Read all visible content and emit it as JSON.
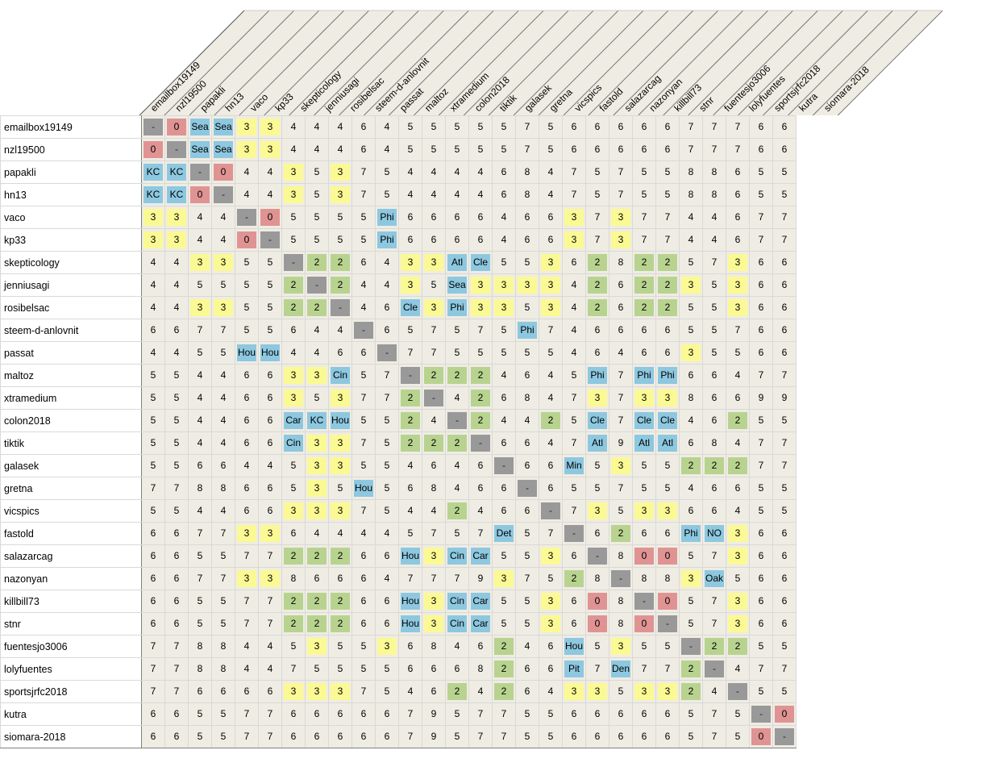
{
  "names": [
    "emailbox19149",
    "nzl19500",
    "papakli",
    "hn13",
    "vaco",
    "kp33",
    "skepticology",
    "jenniusagi",
    "rosibelsac",
    "steem-d-anlovnit",
    "passat",
    "maltoz",
    "xtramedium",
    "colon2018",
    "tiktik",
    "galasek",
    "gretna",
    "vicspics",
    "fastold",
    "salazarcag",
    "nazonyan",
    "killbill73",
    "stnr",
    "fuentesjo3006",
    "lolyfuentes",
    "sportsjrfc2018",
    "kutra",
    "siomara-2018"
  ],
  "matrix": [
    [
      "-",
      "0",
      "Sea",
      "Sea",
      "3",
      "3",
      "4",
      "4",
      "4",
      "6",
      "4",
      "5",
      "5",
      "5",
      "5",
      "5",
      "7",
      "5",
      "6",
      "6",
      "6",
      "6",
      "6",
      "7",
      "7",
      "7",
      "6",
      "6"
    ],
    [
      "0",
      "-",
      "Sea",
      "Sea",
      "3",
      "3",
      "4",
      "4",
      "4",
      "6",
      "4",
      "5",
      "5",
      "5",
      "5",
      "5",
      "7",
      "5",
      "6",
      "6",
      "6",
      "6",
      "6",
      "7",
      "7",
      "7",
      "6",
      "6"
    ],
    [
      "KC",
      "KC",
      "-",
      "0",
      "4",
      "4",
      "3",
      "5",
      "3",
      "7",
      "5",
      "4",
      "4",
      "4",
      "4",
      "6",
      "8",
      "4",
      "7",
      "5",
      "7",
      "5",
      "5",
      "8",
      "8",
      "6",
      "5",
      "5"
    ],
    [
      "KC",
      "KC",
      "0",
      "-",
      "4",
      "4",
      "3",
      "5",
      "3",
      "7",
      "5",
      "4",
      "4",
      "4",
      "4",
      "6",
      "8",
      "4",
      "7",
      "5",
      "7",
      "5",
      "5",
      "8",
      "8",
      "6",
      "5",
      "5"
    ],
    [
      "3",
      "3",
      "4",
      "4",
      "-",
      "0",
      "5",
      "5",
      "5",
      "5",
      "Phi",
      "6",
      "6",
      "6",
      "6",
      "4",
      "6",
      "6",
      "3",
      "7",
      "3",
      "7",
      "7",
      "4",
      "4",
      "6",
      "7",
      "7"
    ],
    [
      "3",
      "3",
      "4",
      "4",
      "0",
      "-",
      "5",
      "5",
      "5",
      "5",
      "Phi",
      "6",
      "6",
      "6",
      "6",
      "4",
      "6",
      "6",
      "3",
      "7",
      "3",
      "7",
      "7",
      "4",
      "4",
      "6",
      "7",
      "7"
    ],
    [
      "4",
      "4",
      "3",
      "3",
      "5",
      "5",
      "-",
      "2",
      "2",
      "6",
      "4",
      "3",
      "3",
      "Atl",
      "Cle",
      "5",
      "5",
      "3",
      "6",
      "2",
      "8",
      "2",
      "2",
      "5",
      "7",
      "3",
      "6",
      "6"
    ],
    [
      "4",
      "4",
      "5",
      "5",
      "5",
      "5",
      "2",
      "-",
      "2",
      "4",
      "4",
      "3",
      "5",
      "Sea",
      "3",
      "3",
      "3",
      "3",
      "4",
      "2",
      "6",
      "2",
      "2",
      "3",
      "5",
      "3",
      "6",
      "6"
    ],
    [
      "4",
      "4",
      "3",
      "3",
      "5",
      "5",
      "2",
      "2",
      "-",
      "4",
      "6",
      "Cle",
      "3",
      "Phi",
      "3",
      "3",
      "5",
      "3",
      "4",
      "2",
      "6",
      "2",
      "2",
      "5",
      "5",
      "3",
      "6",
      "6"
    ],
    [
      "6",
      "6",
      "7",
      "7",
      "5",
      "5",
      "6",
      "4",
      "4",
      "-",
      "6",
      "5",
      "7",
      "5",
      "7",
      "5",
      "Phi",
      "7",
      "4",
      "6",
      "6",
      "6",
      "6",
      "5",
      "5",
      "7",
      "6",
      "6"
    ],
    [
      "4",
      "4",
      "5",
      "5",
      "Hou",
      "Hou",
      "4",
      "4",
      "6",
      "6",
      "-",
      "7",
      "7",
      "5",
      "5",
      "5",
      "5",
      "5",
      "4",
      "6",
      "4",
      "6",
      "6",
      "3",
      "5",
      "5",
      "6",
      "6"
    ],
    [
      "5",
      "5",
      "4",
      "4",
      "6",
      "6",
      "3",
      "3",
      "Cin",
      "5",
      "7",
      "-",
      "2",
      "2",
      "2",
      "4",
      "6",
      "4",
      "5",
      "Phi",
      "7",
      "Phi",
      "Phi",
      "6",
      "6",
      "4",
      "7",
      "7"
    ],
    [
      "5",
      "5",
      "4",
      "4",
      "6",
      "6",
      "3",
      "5",
      "3",
      "7",
      "7",
      "2",
      "-",
      "4",
      "2",
      "6",
      "8",
      "4",
      "7",
      "3",
      "7",
      "3",
      "3",
      "8",
      "6",
      "6",
      "9",
      "9"
    ],
    [
      "5",
      "5",
      "4",
      "4",
      "6",
      "6",
      "Car",
      "KC",
      "Hou",
      "5",
      "5",
      "2",
      "4",
      "-",
      "2",
      "4",
      "4",
      "2",
      "5",
      "Cle",
      "7",
      "Cle",
      "Cle",
      "4",
      "6",
      "2",
      "5",
      "5"
    ],
    [
      "5",
      "5",
      "4",
      "4",
      "6",
      "6",
      "Cin",
      "3",
      "3",
      "7",
      "5",
      "2",
      "2",
      "2",
      "-",
      "6",
      "6",
      "4",
      "7",
      "Atl",
      "9",
      "Atl",
      "Atl",
      "6",
      "8",
      "4",
      "7",
      "7"
    ],
    [
      "5",
      "5",
      "6",
      "6",
      "4",
      "4",
      "5",
      "3",
      "3",
      "5",
      "5",
      "4",
      "6",
      "4",
      "6",
      "-",
      "6",
      "6",
      "Min",
      "5",
      "3",
      "5",
      "5",
      "2",
      "2",
      "2",
      "7",
      "7"
    ],
    [
      "7",
      "7",
      "8",
      "8",
      "6",
      "6",
      "5",
      "3",
      "5",
      "Hou",
      "5",
      "6",
      "8",
      "4",
      "6",
      "6",
      "-",
      "6",
      "5",
      "5",
      "7",
      "5",
      "5",
      "4",
      "6",
      "6",
      "5",
      "5"
    ],
    [
      "5",
      "5",
      "4",
      "4",
      "6",
      "6",
      "3",
      "3",
      "3",
      "7",
      "5",
      "4",
      "4",
      "2",
      "4",
      "6",
      "6",
      "-",
      "7",
      "3",
      "5",
      "3",
      "3",
      "6",
      "6",
      "4",
      "5",
      "5"
    ],
    [
      "6",
      "6",
      "7",
      "7",
      "3",
      "3",
      "6",
      "4",
      "4",
      "4",
      "4",
      "5",
      "7",
      "5",
      "7",
      "Det",
      "5",
      "7",
      "-",
      "6",
      "2",
      "6",
      "6",
      "Phi",
      "NO",
      "3",
      "6",
      "6"
    ],
    [
      "6",
      "6",
      "5",
      "5",
      "7",
      "7",
      "2",
      "2",
      "2",
      "6",
      "6",
      "Hou",
      "3",
      "Cin",
      "Car",
      "5",
      "5",
      "3",
      "6",
      "-",
      "8",
      "0",
      "0",
      "5",
      "7",
      "3",
      "6",
      "6"
    ],
    [
      "6",
      "6",
      "7",
      "7",
      "3",
      "3",
      "8",
      "6",
      "6",
      "6",
      "4",
      "7",
      "7",
      "7",
      "9",
      "3",
      "7",
      "5",
      "2",
      "8",
      "-",
      "8",
      "8",
      "3",
      "Oak",
      "5",
      "6",
      "6"
    ],
    [
      "6",
      "6",
      "5",
      "5",
      "7",
      "7",
      "2",
      "2",
      "2",
      "6",
      "6",
      "Hou",
      "3",
      "Cin",
      "Car",
      "5",
      "5",
      "3",
      "6",
      "0",
      "8",
      "-",
      "0",
      "5",
      "7",
      "3",
      "6",
      "6"
    ],
    [
      "6",
      "6",
      "5",
      "5",
      "7",
      "7",
      "2",
      "2",
      "2",
      "6",
      "6",
      "Hou",
      "3",
      "Cin",
      "Car",
      "5",
      "5",
      "3",
      "6",
      "0",
      "8",
      "0",
      "-",
      "5",
      "7",
      "3",
      "6",
      "6"
    ],
    [
      "7",
      "7",
      "8",
      "8",
      "4",
      "4",
      "5",
      "3",
      "5",
      "5",
      "3",
      "6",
      "8",
      "4",
      "6",
      "2",
      "4",
      "6",
      "Hou",
      "5",
      "3",
      "5",
      "5",
      "-",
      "2",
      "2",
      "5",
      "5"
    ],
    [
      "7",
      "7",
      "8",
      "8",
      "4",
      "4",
      "7",
      "5",
      "5",
      "5",
      "5",
      "6",
      "6",
      "6",
      "8",
      "2",
      "6",
      "6",
      "Pit",
      "7",
      "Den",
      "7",
      "7",
      "2",
      "-",
      "4",
      "7",
      "7"
    ],
    [
      "7",
      "7",
      "6",
      "6",
      "6",
      "6",
      "3",
      "3",
      "3",
      "7",
      "5",
      "4",
      "6",
      "2",
      "4",
      "2",
      "6",
      "4",
      "3",
      "3",
      "5",
      "3",
      "3",
      "2",
      "4",
      "-",
      "5",
      "5"
    ],
    [
      "6",
      "6",
      "5",
      "5",
      "7",
      "7",
      "6",
      "6",
      "6",
      "6",
      "6",
      "7",
      "9",
      "5",
      "7",
      "7",
      "5",
      "5",
      "6",
      "6",
      "6",
      "6",
      "6",
      "5",
      "7",
      "5",
      "-",
      "0"
    ],
    [
      "6",
      "6",
      "5",
      "5",
      "7",
      "7",
      "6",
      "6",
      "6",
      "6",
      "6",
      "7",
      "9",
      "5",
      "7",
      "7",
      "5",
      "5",
      "6",
      "6",
      "6",
      "6",
      "6",
      "5",
      "7",
      "5",
      "0",
      "-"
    ]
  ],
  "colors": {
    "dash": "#999999",
    "zero": "#e09393",
    "two": "#b8d38f",
    "three": "#fbf994",
    "team": "#8dc8e0",
    "cell": "#efece3",
    "header_band": "#efece3"
  }
}
